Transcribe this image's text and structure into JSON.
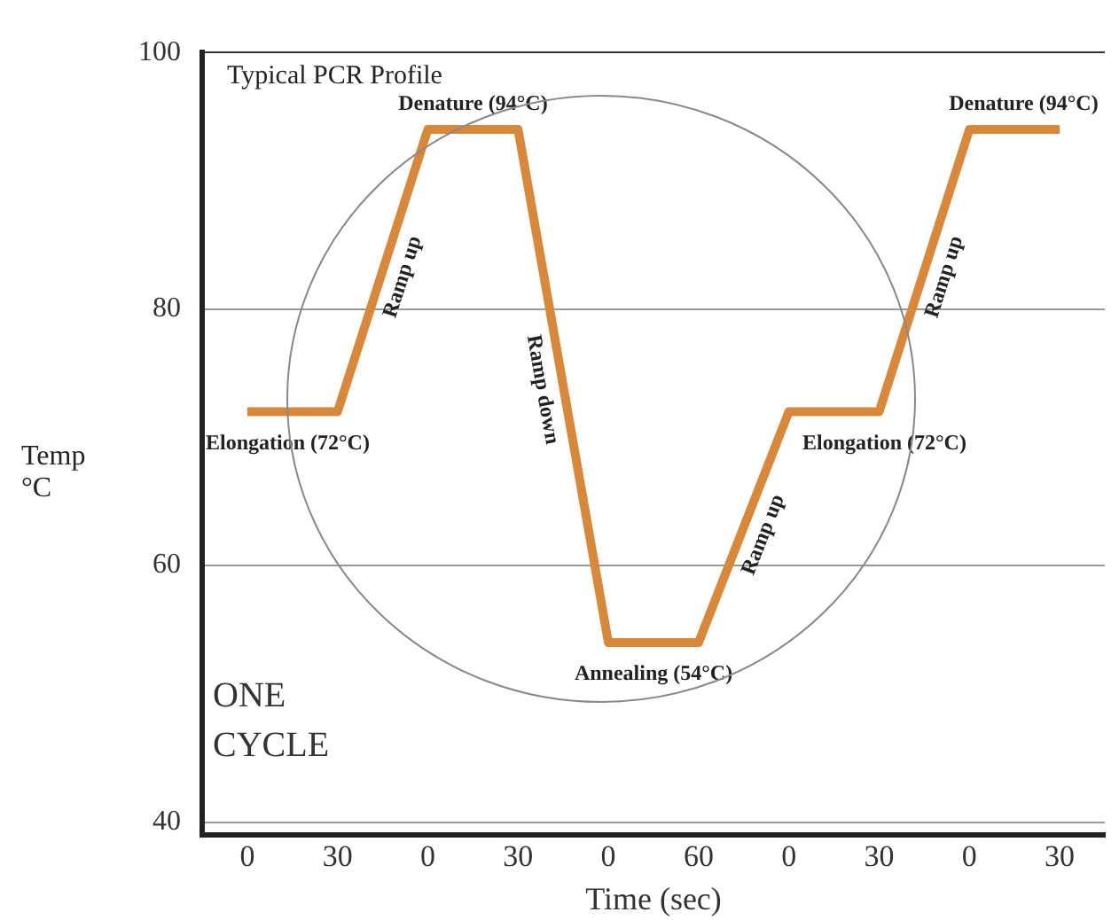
{
  "chart_data": {
    "type": "line",
    "title": "Typical PCR Profile",
    "xlabel": "Time (sec)",
    "ylabel": "Temp °C",
    "categories": [
      "0",
      "30",
      "0",
      "30",
      "0",
      "60",
      "0",
      "30",
      "0",
      "30"
    ],
    "series": [
      {
        "color": "#d9883a",
        "values": [
          72,
          72,
          94,
          94,
          54,
          54,
          72,
          72,
          94,
          94
        ]
      }
    ],
    "ylim": [
      39,
      100
    ],
    "yticks": [
      40,
      60,
      80,
      100
    ],
    "grid": "y",
    "legend": false,
    "marker": "none",
    "line_style": "solid",
    "annotations": [
      {
        "text": "Denature (94°C)",
        "y": 94
      },
      {
        "text": "Elongation (72°C)",
        "y": 72
      },
      "Ramp up",
      "Ramp down",
      {
        "text": "Annealing (54°C)",
        "y": 54
      },
      "Ramp up",
      {
        "text": "Elongation (72°C)",
        "y": 72
      },
      "Ramp up",
      {
        "text": "Denature (94°C)",
        "y": 94
      },
      "ONE CYCLE"
    ]
  }
}
